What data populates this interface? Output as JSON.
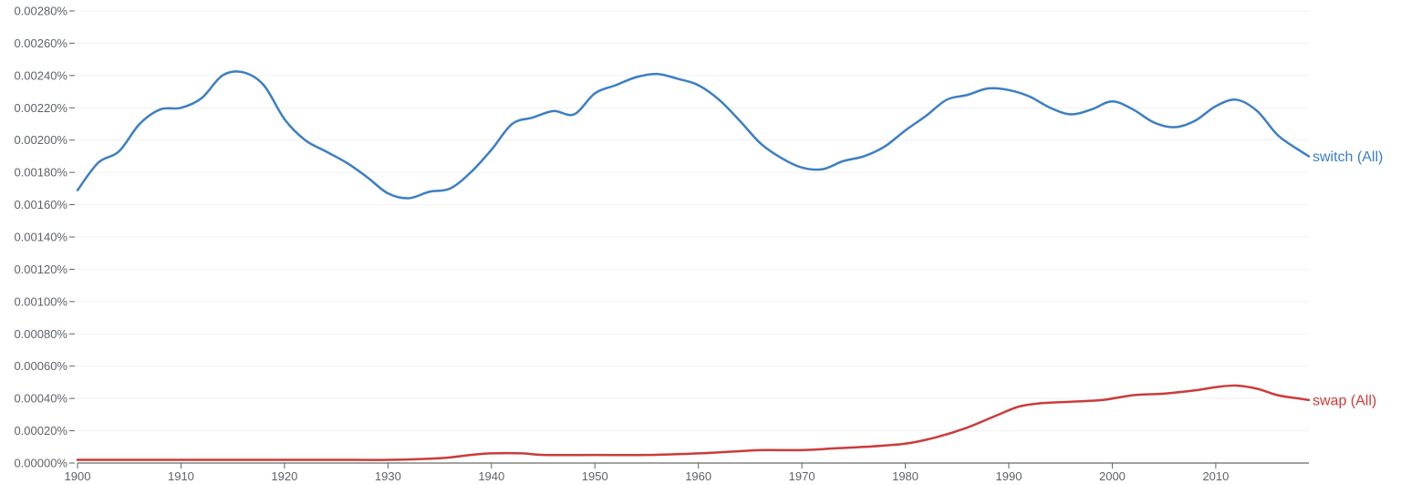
{
  "chart_data": {
    "type": "line",
    "title": "",
    "xlabel": "",
    "ylabel": "",
    "xlim": [
      1900,
      2019
    ],
    "ylim": [
      0,
      0.0028
    ],
    "grid": true,
    "legend": "inline labels at right end of lines",
    "x_ticks": [
      1900,
      1910,
      1920,
      1930,
      1940,
      1950,
      1960,
      1970,
      1980,
      1990,
      2000,
      2010
    ],
    "x_tick_labels": [
      "1900",
      "1910",
      "1920",
      "1930",
      "1940",
      "1950",
      "1960",
      "1970",
      "1980",
      "1990",
      "2000",
      "2010"
    ],
    "y_ticks": [
      0,
      0.0002,
      0.0004,
      0.0006,
      0.0008,
      0.001,
      0.0012,
      0.0014,
      0.0016,
      0.0018,
      0.002,
      0.0022,
      0.0024,
      0.0026,
      0.0028
    ],
    "y_tick_labels": [
      "0.00000%",
      "0.00020%",
      "0.00040%",
      "0.00060%",
      "0.00080%",
      "0.00100%",
      "0.00120%",
      "0.00140%",
      "0.00160%",
      "0.00180%",
      "0.00200%",
      "0.00220%",
      "0.00240%",
      "0.00260%",
      "0.00280%"
    ],
    "series": [
      {
        "name": "switch (All)",
        "color": "#3b7fc4",
        "points": [
          [
            1900,
            0.00169
          ],
          [
            1902,
            0.00186
          ],
          [
            1904,
            0.00193
          ],
          [
            1906,
            0.0021
          ],
          [
            1908,
            0.00219
          ],
          [
            1910,
            0.0022
          ],
          [
            1912,
            0.00226
          ],
          [
            1914,
            0.0024
          ],
          [
            1916,
            0.00242
          ],
          [
            1918,
            0.00234
          ],
          [
            1920,
            0.00213
          ],
          [
            1922,
            0.002
          ],
          [
            1924,
            0.00193
          ],
          [
            1926,
            0.00186
          ],
          [
            1928,
            0.00177
          ],
          [
            1930,
            0.00167
          ],
          [
            1932,
            0.00164
          ],
          [
            1934,
            0.00168
          ],
          [
            1936,
            0.0017
          ],
          [
            1938,
            0.0018
          ],
          [
            1940,
            0.00194
          ],
          [
            1942,
            0.0021
          ],
          [
            1944,
            0.00214
          ],
          [
            1946,
            0.00218
          ],
          [
            1948,
            0.00216
          ],
          [
            1950,
            0.00229
          ],
          [
            1952,
            0.00234
          ],
          [
            1954,
            0.00239
          ],
          [
            1956,
            0.00241
          ],
          [
            1958,
            0.00238
          ],
          [
            1960,
            0.00234
          ],
          [
            1962,
            0.00225
          ],
          [
            1964,
            0.00212
          ],
          [
            1966,
            0.00198
          ],
          [
            1968,
            0.00189
          ],
          [
            1970,
            0.00183
          ],
          [
            1972,
            0.00182
          ],
          [
            1974,
            0.00187
          ],
          [
            1976,
            0.0019
          ],
          [
            1978,
            0.00196
          ],
          [
            1980,
            0.00206
          ],
          [
            1982,
            0.00215
          ],
          [
            1984,
            0.00225
          ],
          [
            1986,
            0.00228
          ],
          [
            1988,
            0.00232
          ],
          [
            1990,
            0.00231
          ],
          [
            1992,
            0.00227
          ],
          [
            1994,
            0.0022
          ],
          [
            1996,
            0.00216
          ],
          [
            1998,
            0.00219
          ],
          [
            2000,
            0.00224
          ],
          [
            2002,
            0.00219
          ],
          [
            2004,
            0.00211
          ],
          [
            2006,
            0.00208
          ],
          [
            2008,
            0.00212
          ],
          [
            2010,
            0.00221
          ],
          [
            2012,
            0.00225
          ],
          [
            2014,
            0.00218
          ],
          [
            2016,
            0.00203
          ],
          [
            2018,
            0.00194
          ],
          [
            2019,
            0.0019
          ]
        ]
      },
      {
        "name": "swap (All)",
        "color": "#cc3b3b",
        "points": [
          [
            1900,
            2e-05
          ],
          [
            1910,
            2e-05
          ],
          [
            1915,
            2e-05
          ],
          [
            1920,
            2e-05
          ],
          [
            1925,
            2e-05
          ],
          [
            1930,
            2e-05
          ],
          [
            1935,
            3e-05
          ],
          [
            1938,
            5e-05
          ],
          [
            1940,
            6e-05
          ],
          [
            1943,
            6e-05
          ],
          [
            1945,
            5e-05
          ],
          [
            1950,
            5e-05
          ],
          [
            1955,
            5e-05
          ],
          [
            1960,
            6e-05
          ],
          [
            1963,
            7e-05
          ],
          [
            1966,
            8e-05
          ],
          [
            1970,
            8e-05
          ],
          [
            1973,
            9e-05
          ],
          [
            1976,
            0.0001
          ],
          [
            1980,
            0.00012
          ],
          [
            1983,
            0.00016
          ],
          [
            1986,
            0.00022
          ],
          [
            1989,
            0.0003
          ],
          [
            1991,
            0.00035
          ],
          [
            1993,
            0.00037
          ],
          [
            1996,
            0.00038
          ],
          [
            1999,
            0.00039
          ],
          [
            2002,
            0.00042
          ],
          [
            2005,
            0.00043
          ],
          [
            2008,
            0.00045
          ],
          [
            2010,
            0.00047
          ],
          [
            2012,
            0.00048
          ],
          [
            2014,
            0.00046
          ],
          [
            2016,
            0.00042
          ],
          [
            2018,
            0.0004
          ],
          [
            2019,
            0.00039
          ]
        ]
      }
    ]
  }
}
